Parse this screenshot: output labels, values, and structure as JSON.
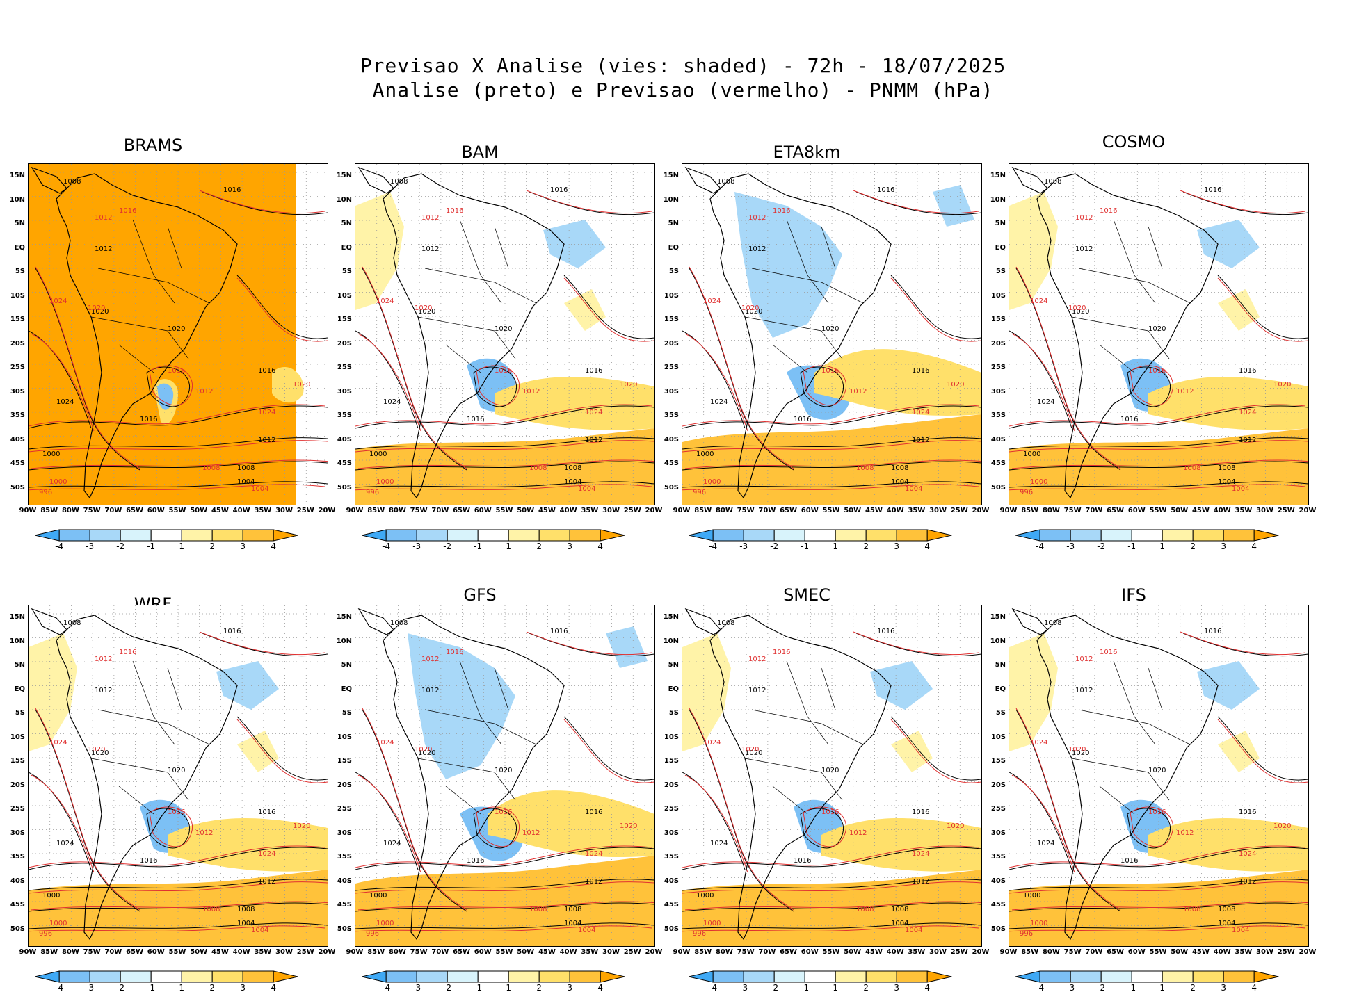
{
  "header": {
    "title_line1": "Previsao X Analise (vies: shaded) - 72h - 18/07/2025",
    "title_line2": "Analise (preto) e Previsao (vermelho) - PNMM (hPa)"
  },
  "axes": {
    "lat_labels": [
      "15N",
      "10N",
      "5N",
      "EQ",
      "5S",
      "10S",
      "15S",
      "20S",
      "25S",
      "30S",
      "35S",
      "40S",
      "45S",
      "50S"
    ],
    "lon_labels": [
      "90W",
      "85W",
      "80W",
      "75W",
      "70W",
      "65W",
      "60W",
      "55W",
      "50W",
      "45W",
      "40W",
      "35W",
      "30W",
      "25W",
      "20W"
    ]
  },
  "colorbar": {
    "ticks": [
      "-4",
      "-3",
      "-2",
      "-1",
      "1",
      "2",
      "3",
      "4"
    ],
    "colors": [
      "#3fa9f5",
      "#7cc0f5",
      "#a8d8f8",
      "#d8f3fb",
      "#ffffff",
      "#fff3a8",
      "#ffe06a",
      "#ffc23a",
      "#ffa500"
    ]
  },
  "colors": {
    "analysis": "#000000",
    "forecast": "#e03030",
    "grid": "#999999"
  },
  "panels": [
    {
      "model": "BRAMS",
      "bias": "warm"
    },
    {
      "model": "BAM",
      "bias": "mixed"
    },
    {
      "model": "ETA8km",
      "bias": "cold"
    },
    {
      "model": "COSMO",
      "bias": "mixed"
    },
    {
      "model": "WRF",
      "bias": "mixed"
    },
    {
      "model": "GFS",
      "bias": "cold"
    },
    {
      "model": "SMEC",
      "bias": "mixed"
    },
    {
      "model": "IFS",
      "bias": "mixed"
    }
  ],
  "contour_labels": {
    "black": [
      "1008",
      "1016",
      "1012",
      "1020",
      "1024",
      "1016",
      "1012",
      "1008",
      "1004",
      "1000",
      "1016",
      "1020"
    ],
    "red": [
      "1012",
      "1016",
      "1020",
      "1024",
      "1016",
      "1012",
      "1008",
      "1004",
      "1000",
      "996",
      "1020",
      "1024"
    ]
  }
}
